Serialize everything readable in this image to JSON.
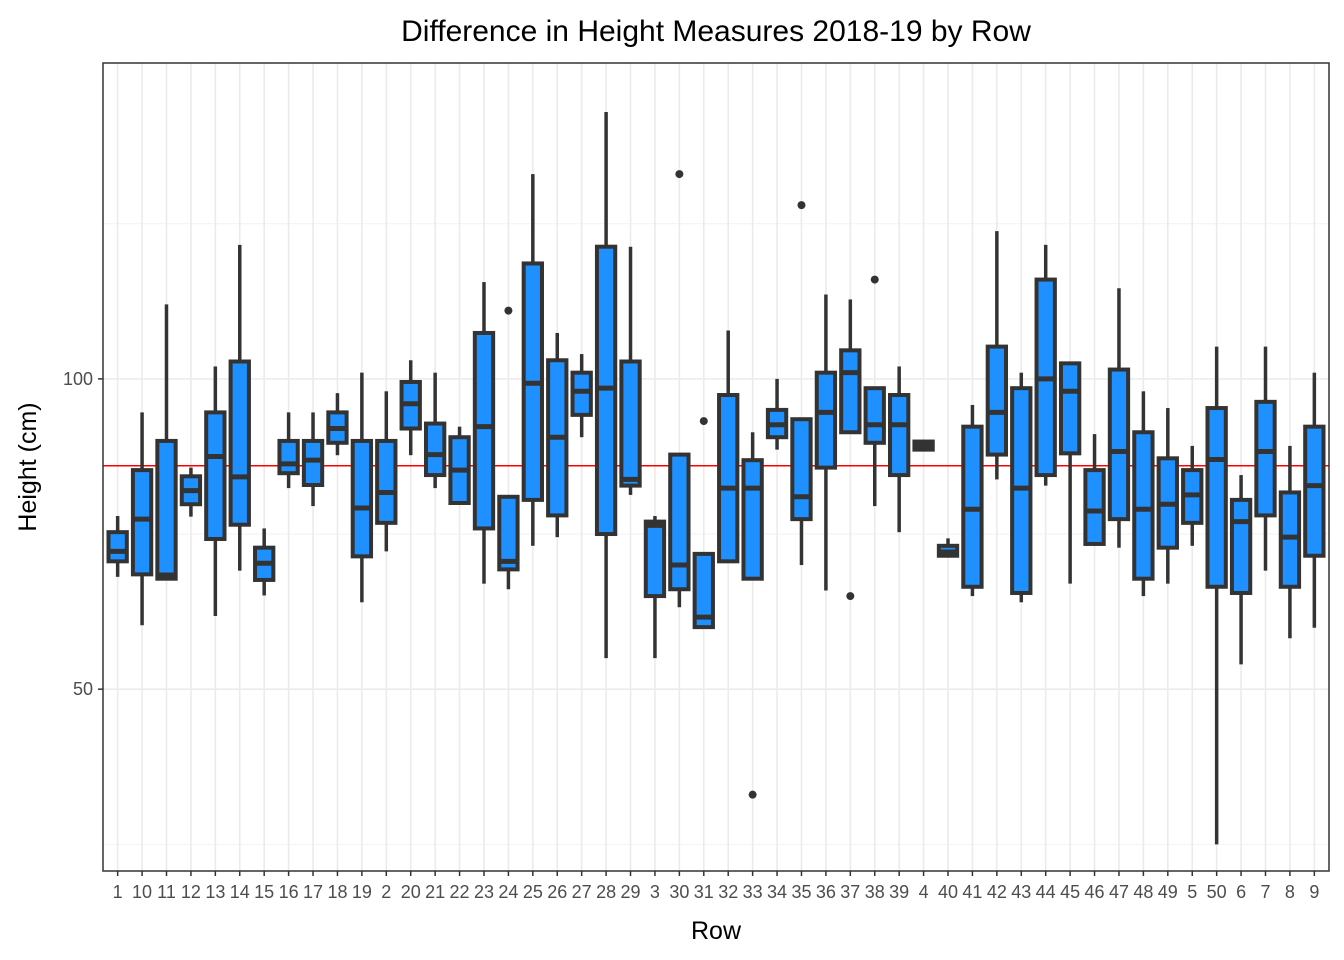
{
  "chart_data": {
    "type": "boxplot",
    "title": "Difference in Height Measures 2018-19 by Row",
    "xlabel": "Row",
    "ylabel": "Height (cm)",
    "ylim": [
      20.7,
      150.9
    ],
    "y_ticks": [
      50,
      100
    ],
    "y_minor_ticks": [
      25,
      75,
      125
    ],
    "grid": true,
    "reference_line": {
      "y": 86,
      "color": "#ff0000"
    },
    "box_fill": "#1e90ff",
    "box_stroke": "#333333",
    "categories": [
      "1",
      "10",
      "11",
      "12",
      "13",
      "14",
      "15",
      "16",
      "17",
      "18",
      "19",
      "2",
      "20",
      "21",
      "22",
      "23",
      "24",
      "25",
      "26",
      "27",
      "28",
      "29",
      "3",
      "30",
      "31",
      "32",
      "33",
      "34",
      "35",
      "36",
      "37",
      "38",
      "39",
      "4",
      "40",
      "41",
      "42",
      "43",
      "44",
      "45",
      "46",
      "47",
      "48",
      "49",
      "5",
      "50",
      "6",
      "7",
      "8",
      "9"
    ],
    "boxes": [
      {
        "min": 68.1,
        "q1": 70.6,
        "median": 72.2,
        "q3": 75.3,
        "max": 77.9,
        "outliers": []
      },
      {
        "min": 60.3,
        "q1": 68.5,
        "median": 77.4,
        "q3": 85.3,
        "max": 94.6,
        "outliers": []
      },
      {
        "min": 67.8,
        "q1": 67.8,
        "median": 68.4,
        "q3": 90.0,
        "max": 112.0,
        "outliers": []
      },
      {
        "min": 77.8,
        "q1": 79.8,
        "median": 82.0,
        "q3": 84.3,
        "max": 85.7,
        "outliers": []
      },
      {
        "min": 61.8,
        "q1": 74.2,
        "median": 87.5,
        "q3": 94.6,
        "max": 102.0,
        "outliers": []
      },
      {
        "min": 69.1,
        "q1": 76.5,
        "median": 84.2,
        "q3": 102.8,
        "max": 121.6,
        "outliers": []
      },
      {
        "min": 65.1,
        "q1": 67.6,
        "median": 70.3,
        "q3": 72.8,
        "max": 75.9,
        "outliers": []
      },
      {
        "min": 82.4,
        "q1": 84.8,
        "median": 86.3,
        "q3": 90.0,
        "max": 94.6,
        "outliers": []
      },
      {
        "min": 79.5,
        "q1": 82.9,
        "median": 86.9,
        "q3": 90.0,
        "max": 94.6,
        "outliers": []
      },
      {
        "min": 87.7,
        "q1": 89.7,
        "median": 92.0,
        "q3": 94.6,
        "max": 97.7,
        "outliers": []
      },
      {
        "min": 64.0,
        "q1": 71.4,
        "median": 79.2,
        "q3": 90.0,
        "max": 101.0,
        "outliers": []
      },
      {
        "min": 72.2,
        "q1": 76.8,
        "median": 81.7,
        "q3": 90.0,
        "max": 98.0,
        "outliers": []
      },
      {
        "min": 87.7,
        "q1": 92.0,
        "median": 96.0,
        "q3": 99.5,
        "max": 103.0,
        "outliers": []
      },
      {
        "min": 82.4,
        "q1": 84.5,
        "median": 87.8,
        "q3": 92.8,
        "max": 101.0,
        "outliers": []
      },
      {
        "min": 80.0,
        "q1": 80.0,
        "median": 85.3,
        "q3": 90.6,
        "max": 92.3,
        "outliers": []
      },
      {
        "min": 67.0,
        "q1": 75.9,
        "median": 92.3,
        "q3": 107.4,
        "max": 115.6,
        "outliers": []
      },
      {
        "min": 66.1,
        "q1": 69.3,
        "median": 70.6,
        "q3": 81.0,
        "max": 81.0,
        "outliers": [
          111.0
        ]
      },
      {
        "min": 73.1,
        "q1": 80.5,
        "median": 99.3,
        "q3": 118.6,
        "max": 133.0,
        "outliers": []
      },
      {
        "min": 74.5,
        "q1": 78.0,
        "median": 90.6,
        "q3": 103.0,
        "max": 107.4,
        "outliers": []
      },
      {
        "min": 90.6,
        "q1": 94.2,
        "median": 98.0,
        "q3": 101.0,
        "max": 104.0,
        "outliers": []
      },
      {
        "min": 55.0,
        "q1": 75.0,
        "median": 98.5,
        "q3": 121.3,
        "max": 143.0,
        "outliers": []
      },
      {
        "min": 81.3,
        "q1": 82.8,
        "median": 83.8,
        "q3": 102.8,
        "max": 121.3,
        "outliers": []
      },
      {
        "min": 55.0,
        "q1": 65.0,
        "median": 76.4,
        "q3": 77.0,
        "max": 77.9,
        "outliers": []
      },
      {
        "min": 63.2,
        "q1": 66.1,
        "median": 70.0,
        "q3": 87.8,
        "max": 87.8,
        "outliers": [
          133.0
        ]
      },
      {
        "min": 60.0,
        "q1": 60.0,
        "median": 61.6,
        "q3": 71.8,
        "max": 71.8,
        "outliers": [
          93.2
        ]
      },
      {
        "min": 70.6,
        "q1": 70.6,
        "median": 82.4,
        "q3": 97.4,
        "max": 107.8,
        "outliers": []
      },
      {
        "min": 67.8,
        "q1": 67.8,
        "median": 82.4,
        "q3": 86.9,
        "max": 91.4,
        "outliers": [
          33.0
        ]
      },
      {
        "min": 88.6,
        "q1": 90.6,
        "median": 92.6,
        "q3": 95.0,
        "max": 100.0,
        "outliers": []
      },
      {
        "min": 70.0,
        "q1": 77.4,
        "median": 81.0,
        "q3": 93.5,
        "max": 93.5,
        "outliers": [
          128.0
        ]
      },
      {
        "min": 65.9,
        "q1": 85.7,
        "median": 94.6,
        "q3": 101.0,
        "max": 113.6,
        "outliers": []
      },
      {
        "min": 91.4,
        "q1": 91.4,
        "median": 101.0,
        "q3": 104.6,
        "max": 112.8,
        "outliers": [
          65.0
        ]
      },
      {
        "min": 79.5,
        "q1": 89.7,
        "median": 92.6,
        "q3": 98.5,
        "max": 98.5,
        "outliers": [
          116.0
        ]
      },
      {
        "min": 75.3,
        "q1": 84.5,
        "median": 92.6,
        "q3": 97.4,
        "max": 102.0,
        "outliers": []
      },
      {
        "min": 88.6,
        "q1": 88.6,
        "median": 89.2,
        "q3": 89.9,
        "max": 89.9,
        "outliers": []
      },
      {
        "min": 71.5,
        "q1": 71.5,
        "median": 72.1,
        "q3": 73.1,
        "max": 74.3,
        "outliers": []
      },
      {
        "min": 65.0,
        "q1": 66.5,
        "median": 79.0,
        "q3": 92.3,
        "max": 95.8,
        "outliers": []
      },
      {
        "min": 83.8,
        "q1": 87.8,
        "median": 94.6,
        "q3": 105.2,
        "max": 123.8,
        "outliers": []
      },
      {
        "min": 64.0,
        "q1": 65.5,
        "median": 82.4,
        "q3": 98.5,
        "max": 101.0,
        "outliers": []
      },
      {
        "min": 82.8,
        "q1": 84.5,
        "median": 100.0,
        "q3": 116.0,
        "max": 121.6,
        "outliers": []
      },
      {
        "min": 67.0,
        "q1": 88.0,
        "median": 98.0,
        "q3": 102.5,
        "max": 102.5,
        "outliers": []
      },
      {
        "min": 73.1,
        "q1": 73.4,
        "median": 78.7,
        "q3": 85.3,
        "max": 91.1,
        "outliers": []
      },
      {
        "min": 72.8,
        "q1": 77.4,
        "median": 88.3,
        "q3": 101.5,
        "max": 114.6,
        "outliers": []
      },
      {
        "min": 65.0,
        "q1": 67.8,
        "median": 79.0,
        "q3": 91.4,
        "max": 98.0,
        "outliers": []
      },
      {
        "min": 67.0,
        "q1": 72.8,
        "median": 79.8,
        "q3": 87.2,
        "max": 95.3,
        "outliers": []
      },
      {
        "min": 73.1,
        "q1": 76.8,
        "median": 81.3,
        "q3": 85.3,
        "max": 89.2,
        "outliers": []
      },
      {
        "min": 25.0,
        "q1": 66.5,
        "median": 87.0,
        "q3": 95.3,
        "max": 105.2,
        "outliers": []
      },
      {
        "min": 54.0,
        "q1": 65.5,
        "median": 77.0,
        "q3": 80.5,
        "max": 84.5,
        "outliers": []
      },
      {
        "min": 69.1,
        "q1": 78.0,
        "median": 88.3,
        "q3": 96.3,
        "max": 105.2,
        "outliers": []
      },
      {
        "min": 58.2,
        "q1": 66.5,
        "median": 74.5,
        "q3": 81.7,
        "max": 89.2,
        "outliers": []
      },
      {
        "min": 59.9,
        "q1": 71.5,
        "median": 82.8,
        "q3": 92.3,
        "max": 101.0,
        "outliers": []
      }
    ]
  }
}
